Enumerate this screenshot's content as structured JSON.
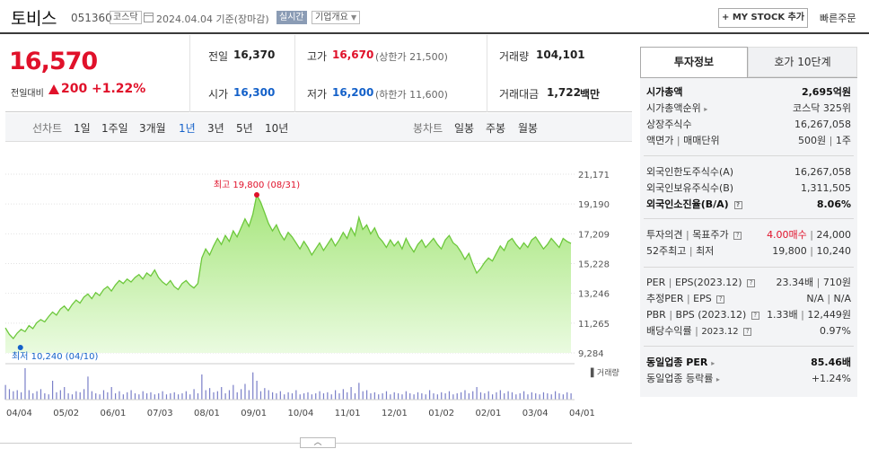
{
  "header": {
    "name": "토비스",
    "code": "051360",
    "market": "코스닥",
    "date": "2024.04.04 기준(장마감)",
    "realtime": "실시간",
    "company_info": "기업개요",
    "mystock": "MY STOCK 추가",
    "quick_order": "빠른주문"
  },
  "price": {
    "current": "16,570",
    "change_label": "전일대비",
    "change": "200",
    "change_pct": "+1.22%"
  },
  "quote": {
    "prev_label": "전일",
    "prev": "16,370",
    "high_label": "고가",
    "high": "16,670",
    "upper_limit": "(상한가 21,500)",
    "volume_label": "거래량",
    "volume": "104,101",
    "open_label": "시가",
    "open": "16,300",
    "low_label": "저가",
    "low": "16,200",
    "lower_limit": "(하한가 11,600)",
    "amount_label": "거래대금",
    "amount": "1,722",
    "amount_unit": "백만"
  },
  "tabs": {
    "line_label": "선차트",
    "periods": [
      "1일",
      "1주일",
      "3개월",
      "1년",
      "3년",
      "5년",
      "10년"
    ],
    "active": "1년",
    "candle_label": "봉차트",
    "candle_periods": [
      "일봉",
      "주봉",
      "월봉"
    ]
  },
  "chart_data": {
    "type": "area",
    "ylim": [
      9284,
      21171
    ],
    "y_ticks": [
      "21,171",
      "19,190",
      "17,209",
      "15,228",
      "13,246",
      "11,265",
      "9,284"
    ],
    "x_ticks": [
      "04/04",
      "05/02",
      "06/01",
      "07/03",
      "08/01",
      "09/01",
      "10/04",
      "11/01",
      "12/01",
      "01/02",
      "02/01",
      "03/04",
      "04/01"
    ],
    "max_label": "최고 19,800 (08/31)",
    "min_label": "최저 10,240 (04/10)",
    "volume_legend": "거래량",
    "max": {
      "date": "08/31",
      "value": 19800
    },
    "min": {
      "date": "04/10",
      "value": 10240
    },
    "price_series": [
      10950,
      10520,
      10240,
      10600,
      10850,
      10700,
      11100,
      10900,
      11300,
      11500,
      11350,
      11700,
      12000,
      11800,
      12200,
      12400,
      12100,
      12500,
      12800,
      12600,
      13000,
      13200,
      12900,
      13300,
      13100,
      13500,
      13700,
      13400,
      13800,
      14100,
      13900,
      14200,
      14000,
      14300,
      14500,
      14200,
      14600,
      14400,
      14800,
      14300,
      14000,
      13800,
      14100,
      13700,
      13500,
      13900,
      14100,
      13800,
      13600,
      13900,
      15600,
      16200,
      15800,
      16400,
      16900,
      16500,
      17100,
      16700,
      17400,
      17000,
      17600,
      18200,
      17700,
      18500,
      19800,
      19300,
      18600,
      17900,
      17400,
      17800,
      17200,
      16800,
      17300,
      17000,
      16600,
      16200,
      16700,
      16300,
      15800,
      16200,
      16600,
      16100,
      16500,
      16900,
      16400,
      16800,
      17300,
      16900,
      17600,
      17100,
      18300,
      17500,
      17800,
      17200,
      17600,
      17000,
      16700,
      16300,
      16800,
      16400,
      16700,
      16200,
      16900,
      16400,
      16000,
      16500,
      16800,
      16300,
      16600,
      16900,
      16500,
      16200,
      16800,
      17100,
      16600,
      16400,
      16000,
      15500,
      15900,
      15200,
      14600,
      14900,
      15300,
      15600,
      15400,
      15900,
      16400,
      16100,
      16700,
      16900,
      16500,
      16200,
      16600,
      16300,
      16800,
      17000,
      16600,
      16200,
      16500,
      16900,
      16600,
      16300,
      16900,
      16700,
      16570
    ],
    "volume_series": [
      14,
      10,
      8,
      9,
      7,
      30,
      9,
      6,
      8,
      10,
      6,
      5,
      18,
      7,
      9,
      12,
      6,
      5,
      8,
      7,
      10,
      22,
      8,
      6,
      5,
      9,
      7,
      12,
      6,
      8,
      5,
      7,
      9,
      6,
      5,
      8,
      6,
      7,
      5,
      6,
      8,
      5,
      6,
      7,
      5,
      6,
      8,
      5,
      10,
      6,
      24,
      9,
      11,
      7,
      8,
      12,
      6,
      9,
      14,
      7,
      10,
      15,
      9,
      26,
      18,
      8,
      11,
      9,
      7,
      6,
      8,
      5,
      7,
      6,
      9,
      5,
      6,
      7,
      5,
      6,
      8,
      6,
      7,
      5,
      9,
      6,
      10,
      7,
      12,
      6,
      16,
      8,
      9,
      6,
      7,
      5,
      6,
      8,
      5,
      7,
      6,
      5,
      8,
      6,
      5,
      7,
      6,
      5,
      9,
      6,
      5,
      7,
      6,
      8,
      5,
      6,
      7,
      9,
      6,
      8,
      12,
      7,
      6,
      8,
      5,
      7,
      9,
      6,
      8,
      7,
      5,
      6,
      8,
      5,
      7,
      6,
      5,
      7,
      6,
      5,
      8,
      6,
      5,
      7,
      6
    ]
  },
  "panel": {
    "tab_invest": "투자정보",
    "tab_order": "호가 10단계",
    "rows1": [
      {
        "label": "시가총액",
        "value": "2,695억원"
      },
      {
        "label": "시가총액순위",
        "value": "코스닥 325위"
      },
      {
        "label": "상장주식수",
        "value": "16,267,058"
      },
      {
        "label": "액면가",
        "label2": "매매단위",
        "value": "500원",
        "value2": "1주"
      }
    ],
    "rows2": [
      {
        "label": "외국인한도주식수(A)",
        "value": "16,267,058"
      },
      {
        "label": "외국인보유주식수(B)",
        "value": "1,311,505"
      },
      {
        "label": "외국인소진율(B/A)",
        "value": "8.06%"
      }
    ],
    "opinion": {
      "label": "투자의견",
      "label2": "목표주가",
      "value": "4.00매수",
      "value2": "24,000"
    },
    "week52": {
      "label": "52주최고",
      "label2": "최저",
      "value": "19,800",
      "value2": "10,240"
    },
    "per": {
      "label": "PER",
      "label2": "EPS(2023.12)",
      "value": "23.34배",
      "value2": "710원"
    },
    "est_per": {
      "label": "추정PER",
      "label2": "EPS",
      "value": "N/A",
      "value2": "N/A"
    },
    "pbr": {
      "label": "PBR",
      "label2": "BPS (2023.12)",
      "value": "1.33배",
      "value2": "12,449원"
    },
    "dividend": {
      "label": "배당수익률",
      "label2": "2023.12",
      "value": "0.97%"
    },
    "industry_per": {
      "label": "동일업종 PER",
      "value": "85.46배"
    },
    "industry_rate": {
      "label": "동일업종 등락률",
      "value": "+1.24%"
    }
  },
  "colors": {
    "red": "#e0112a",
    "blue": "#1461c9",
    "area_fill": "#b6ec8e",
    "area_line": "#6dc83c"
  }
}
